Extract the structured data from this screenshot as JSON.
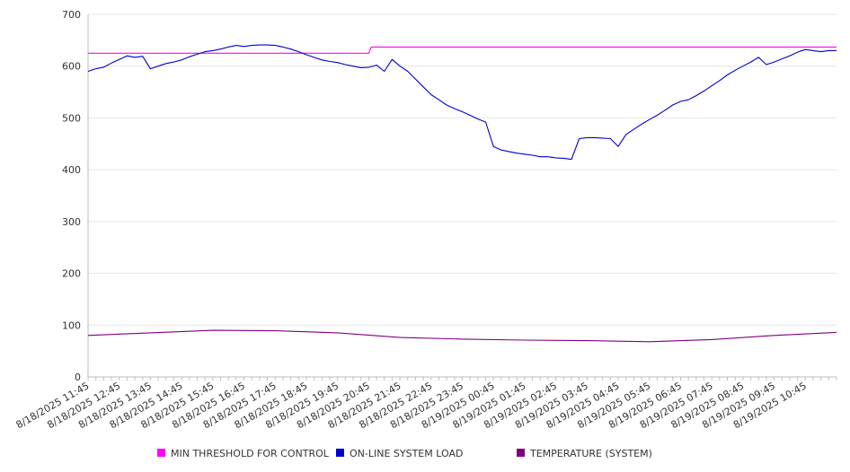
{
  "chart_data": {
    "type": "line",
    "title": "",
    "xlabel": "",
    "ylabel": "",
    "ylim": [
      0,
      700
    ],
    "y_ticks": [
      "0",
      "100",
      "200",
      "300",
      "400",
      "500",
      "600",
      "700"
    ],
    "y_tick_values": [
      0,
      100,
      200,
      300,
      400,
      500,
      600,
      700
    ],
    "x_tick_labels": [
      "8/18/2025 11:45",
      "8/18/2025 12:45",
      "8/18/2025 13:45",
      "8/18/2025 14:45",
      "8/18/2025 15:45",
      "8/18/2025 16:45",
      "8/18/2025 17:45",
      "8/18/2025 18:45",
      "8/18/2025 19:45",
      "8/18/2025 20:45",
      "8/18/2025 21:45",
      "8/18/2025 22:45",
      "8/18/2025 23:45",
      "8/19/2025 00:45",
      "8/19/2025 01:45",
      "8/19/2025 02:45",
      "8/19/2025 03:45",
      "8/19/2025 04:45",
      "8/19/2025 05:45",
      "8/19/2025 06:45",
      "8/19/2025 07:45",
      "8/19/2025 08:45",
      "8/19/2025 09:45",
      "8/19/2025 10:45"
    ],
    "x_range": [
      "8/18/2025 11:45",
      "8/19/2025 11:45"
    ],
    "grid": true,
    "legend_position": "bottom",
    "series": [
      {
        "name": "MIN THRESHOLD FOR CONTROL",
        "color": "#ff00ff",
        "x": [
          "8/18/2025 11:45",
          "8/18/2025 20:45",
          "8/18/2025 20:50",
          "8/19/2025 11:45"
        ],
        "values": [
          625,
          625,
          637,
          637
        ]
      },
      {
        "name": "ON-LINE SYSTEM LOAD",
        "color": "#0000cc",
        "x": [
          "8/18/2025 11:45",
          "8/18/2025 12:00",
          "8/18/2025 12:15",
          "8/18/2025 12:30",
          "8/18/2025 12:45",
          "8/18/2025 13:00",
          "8/18/2025 13:15",
          "8/18/2025 13:30",
          "8/18/2025 13:45",
          "8/18/2025 14:00",
          "8/18/2025 14:15",
          "8/18/2025 14:30",
          "8/18/2025 14:45",
          "8/18/2025 15:00",
          "8/18/2025 15:15",
          "8/18/2025 15:30",
          "8/18/2025 15:45",
          "8/18/2025 16:00",
          "8/18/2025 16:15",
          "8/18/2025 16:30",
          "8/18/2025 16:45",
          "8/18/2025 17:00",
          "8/18/2025 17:15",
          "8/18/2025 17:30",
          "8/18/2025 17:45",
          "8/18/2025 18:00",
          "8/18/2025 18:15",
          "8/18/2025 18:30",
          "8/18/2025 18:45",
          "8/18/2025 19:00",
          "8/18/2025 19:15",
          "8/18/2025 19:30",
          "8/18/2025 19:45",
          "8/18/2025 20:00",
          "8/18/2025 20:15",
          "8/18/2025 20:30",
          "8/18/2025 20:45",
          "8/18/2025 21:00",
          "8/18/2025 21:15",
          "8/18/2025 21:30",
          "8/18/2025 21:45",
          "8/18/2025 22:00",
          "8/18/2025 22:15",
          "8/18/2025 22:30",
          "8/18/2025 22:45",
          "8/18/2025 23:00",
          "8/18/2025 23:15",
          "8/18/2025 23:30",
          "8/18/2025 23:45",
          "8/19/2025 00:00",
          "8/19/2025 00:15",
          "8/19/2025 00:30",
          "8/19/2025 00:45",
          "8/19/2025 01:00",
          "8/19/2025 01:15",
          "8/19/2025 01:30",
          "8/19/2025 01:45",
          "8/19/2025 02:00",
          "8/19/2025 02:15",
          "8/19/2025 02:30",
          "8/19/2025 02:45",
          "8/19/2025 03:00",
          "8/19/2025 03:15",
          "8/19/2025 03:30",
          "8/19/2025 03:45",
          "8/19/2025 04:00",
          "8/19/2025 04:15",
          "8/19/2025 04:30",
          "8/19/2025 04:45",
          "8/19/2025 05:00",
          "8/19/2025 05:15",
          "8/19/2025 05:30",
          "8/19/2025 05:45",
          "8/19/2025 06:00",
          "8/19/2025 06:15",
          "8/19/2025 06:30",
          "8/19/2025 06:45",
          "8/19/2025 07:00",
          "8/19/2025 07:15",
          "8/19/2025 07:30",
          "8/19/2025 07:45",
          "8/19/2025 08:00",
          "8/19/2025 08:15",
          "8/19/2025 08:30",
          "8/19/2025 08:45",
          "8/19/2025 09:00",
          "8/19/2025 09:15",
          "8/19/2025 09:30",
          "8/19/2025 09:45",
          "8/19/2025 10:00",
          "8/19/2025 10:15",
          "8/19/2025 10:30",
          "8/19/2025 10:45",
          "8/19/2025 11:00",
          "8/19/2025 11:15",
          "8/19/2025 11:30",
          "8/19/2025 11:45"
        ],
        "values": [
          590,
          595,
          598,
          606,
          613,
          620,
          617,
          619,
          595,
          600,
          605,
          608,
          612,
          618,
          623,
          628,
          630,
          633,
          637,
          640,
          638,
          640,
          641,
          641,
          640,
          637,
          633,
          628,
          622,
          617,
          612,
          609,
          607,
          603,
          600,
          597,
          598,
          602,
          590,
          613,
          600,
          590,
          575,
          560,
          545,
          535,
          525,
          518,
          512,
          505,
          498,
          492,
          445,
          438,
          435,
          432,
          430,
          428,
          425,
          425,
          423,
          422,
          420,
          460,
          462,
          462,
          461,
          460,
          445,
          468,
          478,
          488,
          497,
          505,
          515,
          525,
          532,
          535,
          543,
          552,
          562,
          572,
          583,
          592,
          600,
          608,
          617,
          603,
          608,
          614,
          620,
          627,
          632,
          630,
          628,
          630,
          630
        ]
      },
      {
        "name": "TEMPERATURE (SYSTEM)",
        "color": "#800080",
        "x": [
          "8/18/2025 11:45",
          "8/18/2025 13:45",
          "8/18/2025 15:45",
          "8/18/2025 17:45",
          "8/18/2025 19:45",
          "8/18/2025 21:45",
          "8/18/2025 23:45",
          "8/19/2025 01:45",
          "8/19/2025 03:45",
          "8/19/2025 05:45",
          "8/19/2025 07:45",
          "8/19/2025 09:45",
          "8/19/2025 11:45"
        ],
        "values": [
          80,
          85,
          90,
          89,
          85,
          76,
          73,
          71,
          70,
          68,
          72,
          80,
          86
        ]
      }
    ]
  }
}
